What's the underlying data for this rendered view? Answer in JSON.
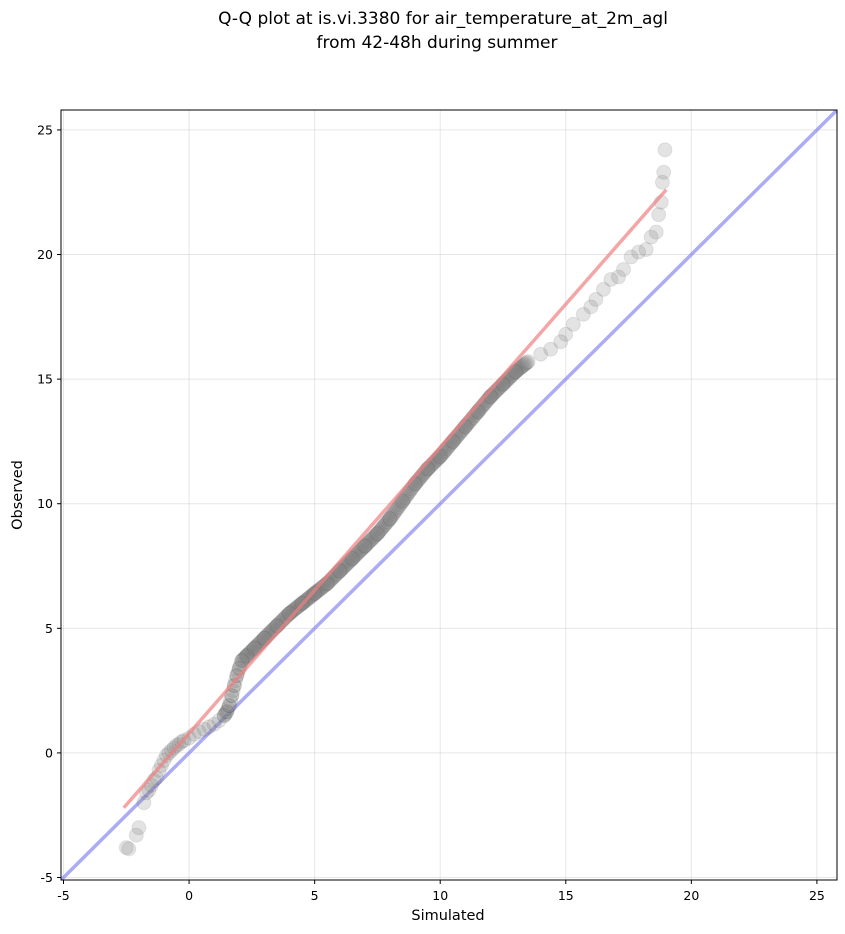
{
  "chart_data": {
    "type": "scatter",
    "title": "Q-Q plot at is.vi.3380 for air_temperature_at_2m_agl",
    "subtitle": "from 42-48h during summer",
    "xlabel": "Simulated",
    "ylabel": "Observed",
    "xlim": [
      -5.1,
      25.8
    ],
    "ylim": [
      -5.1,
      25.8
    ],
    "xticks": [
      -5,
      0,
      5,
      10,
      15,
      20,
      25
    ],
    "yticks": [
      -5,
      0,
      5,
      10,
      15,
      20,
      25
    ],
    "grid": true,
    "colors": {
      "points_face": "#808080",
      "points_edge": "#000000",
      "fit_line": "#f08080",
      "identity_line": "#8080f0"
    },
    "quantile_points": {
      "x": [
        -2.5,
        -2.4,
        -2.1,
        -2.0,
        -1.8,
        -1.7,
        -1.6,
        -1.5,
        -1.4,
        -1.3,
        -1.2,
        -1.1,
        -1.0,
        -0.9,
        -0.8,
        -0.7,
        -0.6,
        -0.5,
        -0.4,
        -0.3,
        -0.2,
        0.0,
        0.2,
        0.4,
        0.6,
        0.8,
        1.0,
        1.2,
        1.4,
        1.5,
        1.6,
        1.7,
        1.8,
        1.9,
        2.0,
        2.1,
        2.3,
        2.6,
        3.0,
        3.5,
        4.0,
        4.5,
        5.0,
        5.5,
        6.0,
        6.5,
        7.0,
        7.5,
        8.0,
        8.5,
        9.0,
        9.5,
        10.0,
        10.5,
        11.0,
        11.5,
        12.0,
        12.5,
        13.0,
        13.5,
        14.0,
        14.4,
        14.8,
        15.0,
        15.3,
        15.7,
        16.0,
        16.2,
        16.5,
        16.8,
        17.1,
        17.3,
        17.6,
        17.9,
        18.2,
        18.4,
        18.6,
        18.7,
        18.8,
        18.85,
        18.9,
        18.95
      ],
      "y": [
        -3.8,
        -3.85,
        -3.3,
        -3.0,
        -2.0,
        -1.6,
        -1.5,
        -1.3,
        -1.1,
        -1.0,
        -0.7,
        -0.5,
        -0.3,
        -0.1,
        0.0,
        0.1,
        0.2,
        0.3,
        0.35,
        0.45,
        0.5,
        0.6,
        0.75,
        0.85,
        0.95,
        1.05,
        1.15,
        1.3,
        1.5,
        1.65,
        1.9,
        2.3,
        2.7,
        3.1,
        3.4,
        3.7,
        3.9,
        4.2,
        4.6,
        5.1,
        5.6,
        6.0,
        6.4,
        6.8,
        7.3,
        7.8,
        8.3,
        8.8,
        9.4,
        10.1,
        10.8,
        11.4,
        11.9,
        12.5,
        13.1,
        13.7,
        14.3,
        14.8,
        15.3,
        15.7,
        16.0,
        16.2,
        16.5,
        16.8,
        17.2,
        17.6,
        17.9,
        18.2,
        18.6,
        19.0,
        19.1,
        19.4,
        19.9,
        20.1,
        20.2,
        20.7,
        20.9,
        21.6,
        22.1,
        22.9,
        23.3,
        24.2
      ],
      "dense_region": [
        1.4,
        13.5
      ]
    },
    "fit_line": {
      "x": [
        -2.6,
        19.0
      ],
      "y": [
        -2.2,
        22.6
      ]
    },
    "identity_line": {
      "x": [
        -5.1,
        25.8
      ],
      "y": [
        -5.1,
        25.8
      ]
    }
  }
}
